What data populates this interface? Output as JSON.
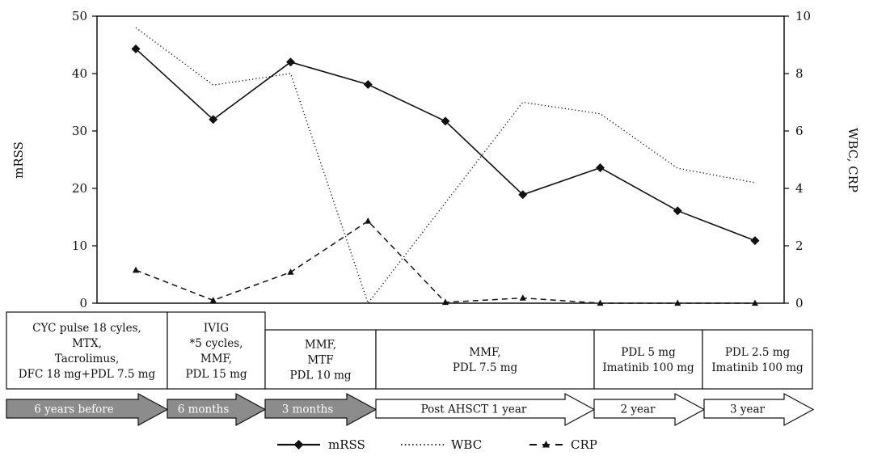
{
  "chart_data": {
    "type": "line",
    "xlabel": "",
    "ylabel": "mRSS",
    "y2label": "WBC, CRP",
    "ylim": [
      0,
      50
    ],
    "y2lim": [
      0,
      10
    ],
    "yticks": [
      0,
      10,
      20,
      30,
      40,
      50
    ],
    "y2ticks": [
      0,
      2,
      4,
      6,
      8,
      10
    ],
    "grid": false,
    "x": [
      1,
      2,
      3,
      4,
      5,
      6,
      7,
      8,
      9
    ],
    "series": [
      {
        "name": "mRSS",
        "axis": "left",
        "style": "solid-diamond",
        "values": [
          44.3,
          32.0,
          42.0,
          38.1,
          31.7,
          18.9,
          23.6,
          16.1,
          10.9
        ]
      },
      {
        "name": "WBC",
        "axis": "right",
        "style": "dotted",
        "values": [
          9.6,
          7.6,
          8.0,
          0.0,
          null,
          7.0,
          6.6,
          4.7,
          4.2
        ]
      },
      {
        "name": "CRP",
        "axis": "right",
        "style": "dashed-triangle",
        "values": [
          1.15,
          0.1,
          1.08,
          2.86,
          0.03,
          0.18,
          0.0,
          0.0,
          0.0
        ]
      }
    ],
    "treatments": [
      {
        "lines": [
          "CYC pulse 18 cyles,",
          "MTX,",
          "Tacrolimus,",
          "DFC 18 mg+PDL 7.5 mg"
        ]
      },
      {
        "lines": [
          "IVIG",
          "*5 cycles,",
          "MMF,",
          "PDL 15 mg"
        ]
      },
      {
        "lines": [
          "MMF,",
          "MTF",
          "PDL 10 mg"
        ]
      },
      {
        "lines": [
          "MMF,",
          "PDL 7.5 mg"
        ]
      },
      {
        "lines": [
          "PDL 5 mg",
          "Imatinib 100 mg"
        ]
      },
      {
        "lines": [
          "PDL 2.5 mg",
          "Imatinib 100 mg"
        ]
      }
    ],
    "periods": [
      {
        "label": "6 years before",
        "fill": "#8c8c8c"
      },
      {
        "label": "6 months",
        "fill": "#8c8c8c"
      },
      {
        "label": "3 months",
        "fill": "#8c8c8c"
      },
      {
        "label": "Post AHSCT 1 year",
        "fill": "#ffffff"
      },
      {
        "label": "2 year",
        "fill": "#ffffff"
      },
      {
        "label": "3 year",
        "fill": "#ffffff"
      }
    ],
    "legend": {
      "position": "bottom",
      "items": [
        {
          "label": "mRSS",
          "style": "solid-diamond"
        },
        {
          "label": "WBC",
          "style": "dotted"
        },
        {
          "label": "CRP",
          "style": "dashed-triangle"
        }
      ]
    }
  }
}
